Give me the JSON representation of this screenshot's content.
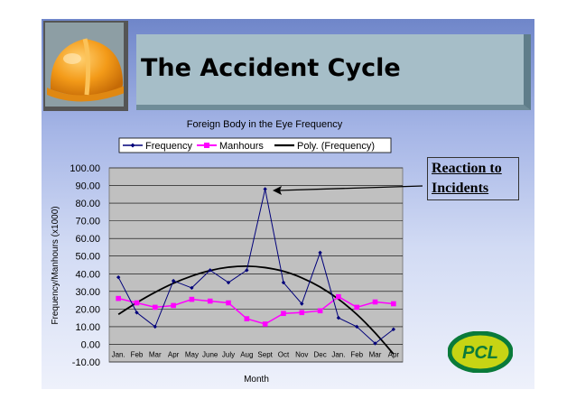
{
  "slide": {
    "title": "The Accident Cycle",
    "callout_lines": [
      "Reaction to",
      "Incidents"
    ],
    "logo_text": "PCL"
  },
  "colors": {
    "frequency": "#00007a",
    "manhours": "#ff00ff",
    "trend": "#000000",
    "plot_bg": "#c0c0c0",
    "reaction_arrow": "#000000"
  },
  "icons": {
    "hard_hat": "hard-hat-icon",
    "logo": "pcl-logo"
  },
  "chart_data": {
    "type": "line",
    "title": "Foreign Body in the Eye Frequency",
    "xlabel": "Month",
    "ylabel": "Frequency/Manhours (x1000)",
    "ylim": [
      -10,
      100
    ],
    "yticks": [
      "100.00",
      "90.00",
      "80.00",
      "70.00",
      "60.00",
      "50.00",
      "40.00",
      "30.00",
      "20.00",
      "10.00",
      "0.00",
      "-10.00"
    ],
    "categories": [
      "Jan.",
      "Feb",
      "Mar",
      "Apr",
      "May",
      "June",
      "July",
      "Aug",
      "Sept",
      "Oct",
      "Nov",
      "Dec",
      "Jan.",
      "Feb",
      "Mar",
      "Apr"
    ],
    "grid": true,
    "legend_position": "top",
    "series": [
      {
        "name": "Frequency",
        "marker": "diamond",
        "values": [
          38,
          18,
          10,
          36,
          32,
          42,
          35,
          42,
          88,
          35,
          23,
          52,
          15,
          10,
          0.5,
          8.5
        ]
      },
      {
        "name": "Manhours",
        "marker": "square",
        "values": [
          26,
          23.5,
          21,
          22,
          25.5,
          24.5,
          23.5,
          14.5,
          11.5,
          17.5,
          18,
          19,
          27,
          21,
          24,
          23
        ]
      },
      {
        "name": "Poly. (Frequency)",
        "marker": "none",
        "values": [
          17,
          23.6,
          29.5,
          34.6,
          38.7,
          41.8,
          43.7,
          44.3,
          43.5,
          41.4,
          37.7,
          32.5,
          25.6,
          17,
          6.5,
          -5.5
        ]
      }
    ]
  }
}
